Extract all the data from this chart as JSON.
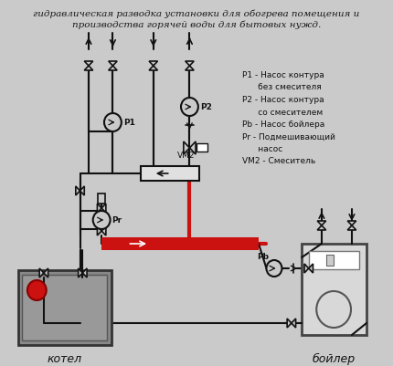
{
  "title1": "гидравлическая разводка установки для обогрева помещения и",
  "title2": "производства горячей воды для бытовых нужд.",
  "bg": "#cacaca",
  "black": "#111111",
  "red": "#cc1111",
  "legend_lines": [
    "P1 - Насос контура",
    "      без смесителя",
    "P2 - Насос контура",
    "      со смесителем",
    "Pb - Насос бойлера",
    "Pr - Подмешивающий",
    "      насос",
    "VM2 - Смеситель"
  ],
  "label_kotel": "котел",
  "label_boyler": "бойлер"
}
